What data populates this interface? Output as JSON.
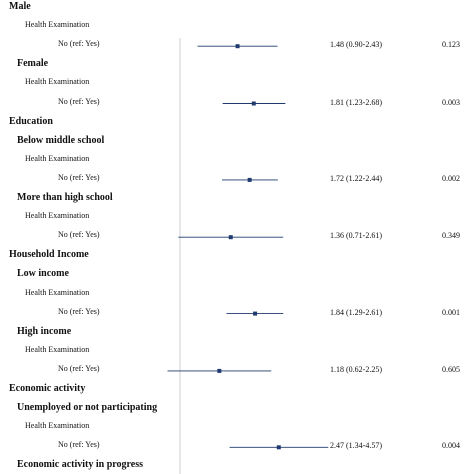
{
  "chart_data": {
    "type": "forest",
    "rows": [
      {
        "label": "Male",
        "level": 0
      },
      {
        "label": "Health Examination",
        "level": 2
      },
      {
        "label": "No (ref: Yes)",
        "level": 3,
        "or": 1.48,
        "lo": 0.9,
        "hi": 2.43,
        "ci_text": "1.48 (0.90-2.43)",
        "p_text": "0.123"
      },
      {
        "label": "Female",
        "level": 1
      },
      {
        "label": "Health Examination",
        "level": 2
      },
      {
        "label": "No (ref: Yes)",
        "level": 3,
        "or": 1.81,
        "lo": 1.23,
        "hi": 2.68,
        "ci_text": "1.81 (1.23-2.68)",
        "p_text": "0.003"
      },
      {
        "label": "Education",
        "level": 0
      },
      {
        "label": "Below middle school",
        "level": 1
      },
      {
        "label": "Health Examination",
        "level": 2
      },
      {
        "label": "No (ref: Yes)",
        "level": 3,
        "or": 1.72,
        "lo": 1.22,
        "hi": 2.44,
        "ci_text": "1.72 (1.22-2.44)",
        "p_text": "0.002"
      },
      {
        "label": "More than high school",
        "level": 1
      },
      {
        "label": "Health Examination",
        "level": 2
      },
      {
        "label": "No (ref: Yes)",
        "level": 3,
        "or": 1.36,
        "lo": 0.71,
        "hi": 2.61,
        "ci_text": "1.36 (0.71-2.61)",
        "p_text": "0.349"
      },
      {
        "label": "Household Income",
        "level": 0
      },
      {
        "label": "Low income",
        "level": 1
      },
      {
        "label": "Health Examination",
        "level": 2
      },
      {
        "label": "No (ref: Yes)",
        "level": 3,
        "or": 1.84,
        "lo": 1.29,
        "hi": 2.61,
        "ci_text": "1.84 (1.29-2.61)",
        "p_text": "0.001"
      },
      {
        "label": "High income",
        "level": 1
      },
      {
        "label": "Health Examination",
        "level": 2
      },
      {
        "label": "No (ref: Yes)",
        "level": 3,
        "or": 1.18,
        "lo": 0.62,
        "hi": 2.25,
        "ci_text": "1.18 (0.62-2.25)",
        "p_text": "0.605"
      },
      {
        "label": "Economic activity",
        "level": 0
      },
      {
        "label": "Unemployed or not participating",
        "level": 1
      },
      {
        "label": "Health Examination",
        "level": 2
      },
      {
        "label": "No (ref: Yes)",
        "level": 3,
        "or": 2.47,
        "lo": 1.34,
        "hi": 4.57,
        "ci_text": "2.47 (1.34-4.57)",
        "p_text": "0.004"
      },
      {
        "label": "Economic activity in progress",
        "level": 1
      }
    ],
    "reference_line": 1,
    "x_scale": "log",
    "marker_color": "#1f3a6e",
    "line_color": "#1f3a6e",
    "ref_line_color": "#cccccc"
  }
}
